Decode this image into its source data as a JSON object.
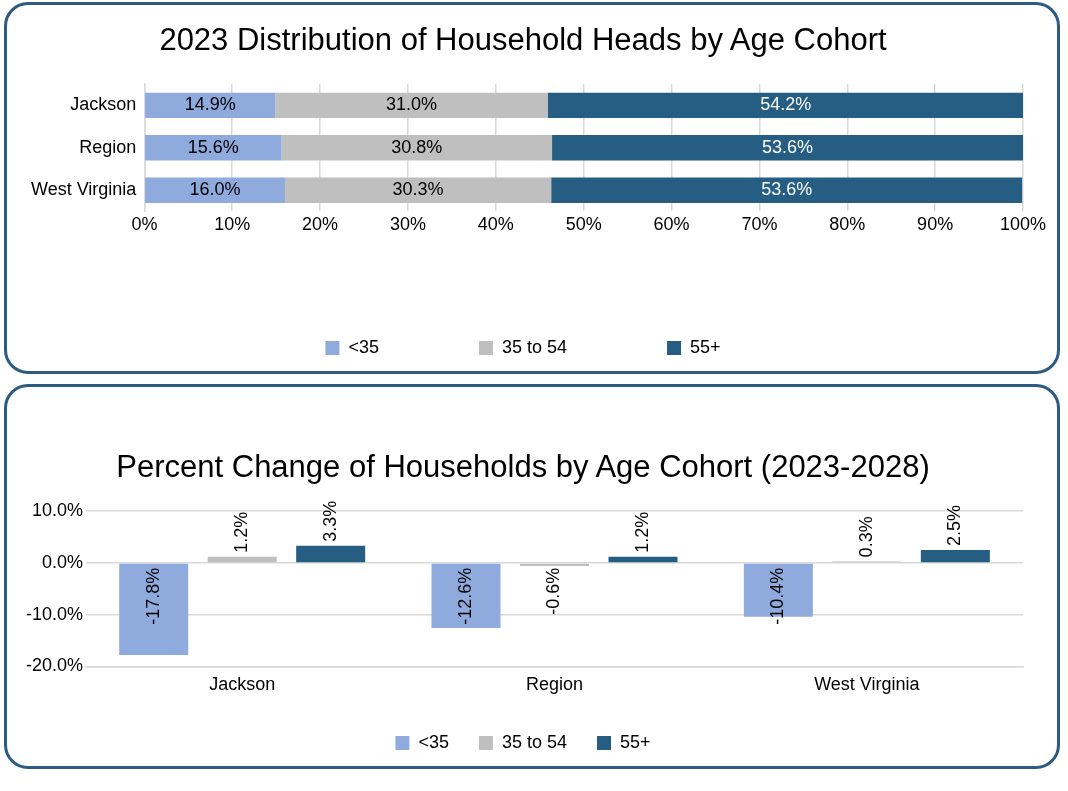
{
  "chart_data": [
    {
      "type": "bar",
      "title": "2023 Distribution of Household Heads by Age Cohort",
      "orientation": "horizontal",
      "stacked": true,
      "categories": [
        "Jackson",
        "Region",
        "West Virginia"
      ],
      "series": [
        {
          "name": "<35",
          "color": "#8faadc",
          "values": [
            14.9,
            15.6,
            16.0
          ],
          "value_labels": [
            "14.9%",
            "15.6%",
            "16.0%"
          ]
        },
        {
          "name": "35 to 54",
          "color": "#bfbfbf",
          "values": [
            31.0,
            30.8,
            30.3
          ],
          "value_labels": [
            "31.0%",
            "30.8%",
            "30.3%"
          ]
        },
        {
          "name": "55+",
          "color": "#255e82",
          "values": [
            54.2,
            53.6,
            53.6
          ],
          "value_labels": [
            "54.2%",
            "53.6%",
            "53.6%"
          ]
        }
      ],
      "xlim": [
        0,
        100
      ],
      "xticks": [
        {
          "value": 0,
          "label": "0%"
        },
        {
          "value": 10,
          "label": "10%"
        },
        {
          "value": 20,
          "label": "20%"
        },
        {
          "value": 30,
          "label": "30%"
        },
        {
          "value": 40,
          "label": "40%"
        },
        {
          "value": 50,
          "label": "50%"
        },
        {
          "value": 60,
          "label": "60%"
        },
        {
          "value": 70,
          "label": "70%"
        },
        {
          "value": 80,
          "label": "80%"
        },
        {
          "value": 90,
          "label": "90%"
        },
        {
          "value": 100,
          "label": "100%"
        }
      ],
      "grid": "x",
      "legend": "bottom"
    },
    {
      "type": "bar",
      "title": "Percent Change of Households by Age Cohort (2023-2028)",
      "categories": [
        "Jackson",
        "Region",
        "West Virginia"
      ],
      "series": [
        {
          "name": "<35",
          "color": "#8faadc",
          "values": [
            -17.8,
            -12.6,
            -10.4
          ],
          "value_labels": [
            "-17.8%",
            "-12.6%",
            "-10.4%"
          ]
        },
        {
          "name": "35 to 54",
          "color": "#bfbfbf",
          "values": [
            1.2,
            -0.6,
            0.3
          ],
          "value_labels": [
            "1.2%",
            "-0.6%",
            "0.3%"
          ]
        },
        {
          "name": "55+",
          "color": "#255e82",
          "values": [
            3.3,
            1.2,
            2.5
          ],
          "value_labels": [
            "3.3%",
            "1.2%",
            "2.5%"
          ]
        }
      ],
      "ylim": [
        -20,
        10
      ],
      "yticks": [
        {
          "value": -20,
          "label": "-20.0%"
        },
        {
          "value": -10,
          "label": "-10.0%"
        },
        {
          "value": 0,
          "label": "0.0%"
        },
        {
          "value": 10,
          "label": "10.0%"
        }
      ],
      "grid": "y",
      "legend": "bottom"
    }
  ]
}
